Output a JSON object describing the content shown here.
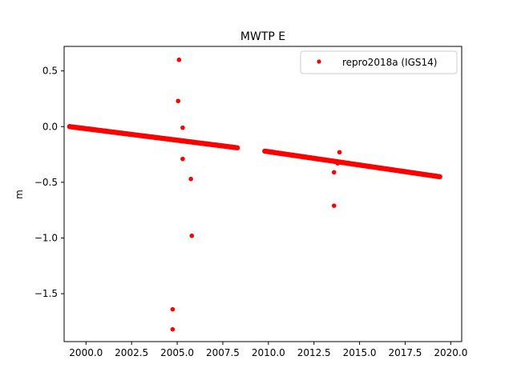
{
  "chart_data": {
    "type": "scatter",
    "title": "MWTP E",
    "xlabel": "",
    "ylabel": "m",
    "xlim": [
      1998.8,
      2020.6
    ],
    "ylim": [
      -1.93,
      0.72
    ],
    "grid": false,
    "legend_position": "top-right",
    "x_ticks": [
      2000.0,
      2002.5,
      2005.0,
      2007.5,
      2010.0,
      2012.5,
      2015.0,
      2017.5,
      2020.0
    ],
    "x_tick_labels": [
      "2000.0",
      "2002.5",
      "2005.0",
      "2007.5",
      "2010.0",
      "2012.5",
      "2015.0",
      "2017.5",
      "2020.0"
    ],
    "y_ticks": [
      0.5,
      0.0,
      -0.5,
      -1.0,
      -1.5
    ],
    "y_tick_labels": [
      "0.5",
      "0.0",
      "−0.5",
      "−1.0",
      "−1.5"
    ],
    "series": [
      {
        "name": "repro2018a (IGS14)",
        "color": "#ff0000",
        "marker": "circle",
        "segments": [
          {
            "x_start": 1999.1,
            "x_end": 2008.3,
            "y_start": 0.0,
            "y_end": -0.19
          },
          {
            "x_start": 2009.8,
            "x_end": 2019.4,
            "y_start": -0.22,
            "y_end": -0.45
          }
        ],
        "points": [
          {
            "x": 2005.1,
            "y": 0.6
          },
          {
            "x": 2005.05,
            "y": 0.23
          },
          {
            "x": 2005.3,
            "y": -0.01
          },
          {
            "x": 2005.3,
            "y": -0.29
          },
          {
            "x": 2005.75,
            "y": -0.47
          },
          {
            "x": 2005.8,
            "y": -0.98
          },
          {
            "x": 2004.75,
            "y": -1.64
          },
          {
            "x": 2004.75,
            "y": -1.82
          },
          {
            "x": 2013.6,
            "y": -0.41
          },
          {
            "x": 2013.6,
            "y": -0.71
          },
          {
            "x": 2013.9,
            "y": -0.23
          },
          {
            "x": 2013.8,
            "y": -0.33
          }
        ]
      }
    ]
  }
}
